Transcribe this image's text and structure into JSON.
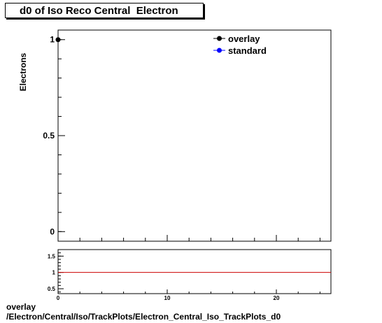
{
  "title": "d0 of Iso Reco Central  Electron",
  "footer": {
    "line1": "overlay",
    "line2": "/Electron/Central/Iso/TrackPlots/Electron_Central_Iso_TrackPlots_d0"
  },
  "chart_data": [
    {
      "type": "scatter",
      "ylabel": "Electrons",
      "xlabel": "",
      "xlim": [
        0,
        25
      ],
      "ylim": [
        -0.05,
        1.05
      ],
      "y_ticks": [
        0,
        0.5,
        1
      ],
      "y_tick_labels": [
        "0",
        "0.5",
        "1"
      ],
      "legend": {
        "placement": "top-right",
        "entries": [
          {
            "name": "overlay",
            "color": "#000000"
          },
          {
            "name": "standard",
            "color": "#0000ff"
          }
        ]
      },
      "series": [
        {
          "name": "overlay",
          "color": "#000000",
          "x": [
            0
          ],
          "y": [
            1
          ]
        },
        {
          "name": "standard",
          "color": "#0000ff",
          "x": [],
          "y": []
        }
      ],
      "grid": false
    },
    {
      "type": "line",
      "xlim": [
        0,
        25
      ],
      "ylim": [
        0.35,
        1.7
      ],
      "y_ticks": [
        0.5,
        1,
        1.5
      ],
      "y_tick_labels": [
        "0.5",
        "1",
        "1.5"
      ],
      "x_ticks": [
        0,
        10,
        20
      ],
      "x_tick_labels": [
        "0",
        "10",
        "20"
      ],
      "reference_line": {
        "y": 1,
        "color": "#cc0000"
      },
      "grid": false
    }
  ]
}
